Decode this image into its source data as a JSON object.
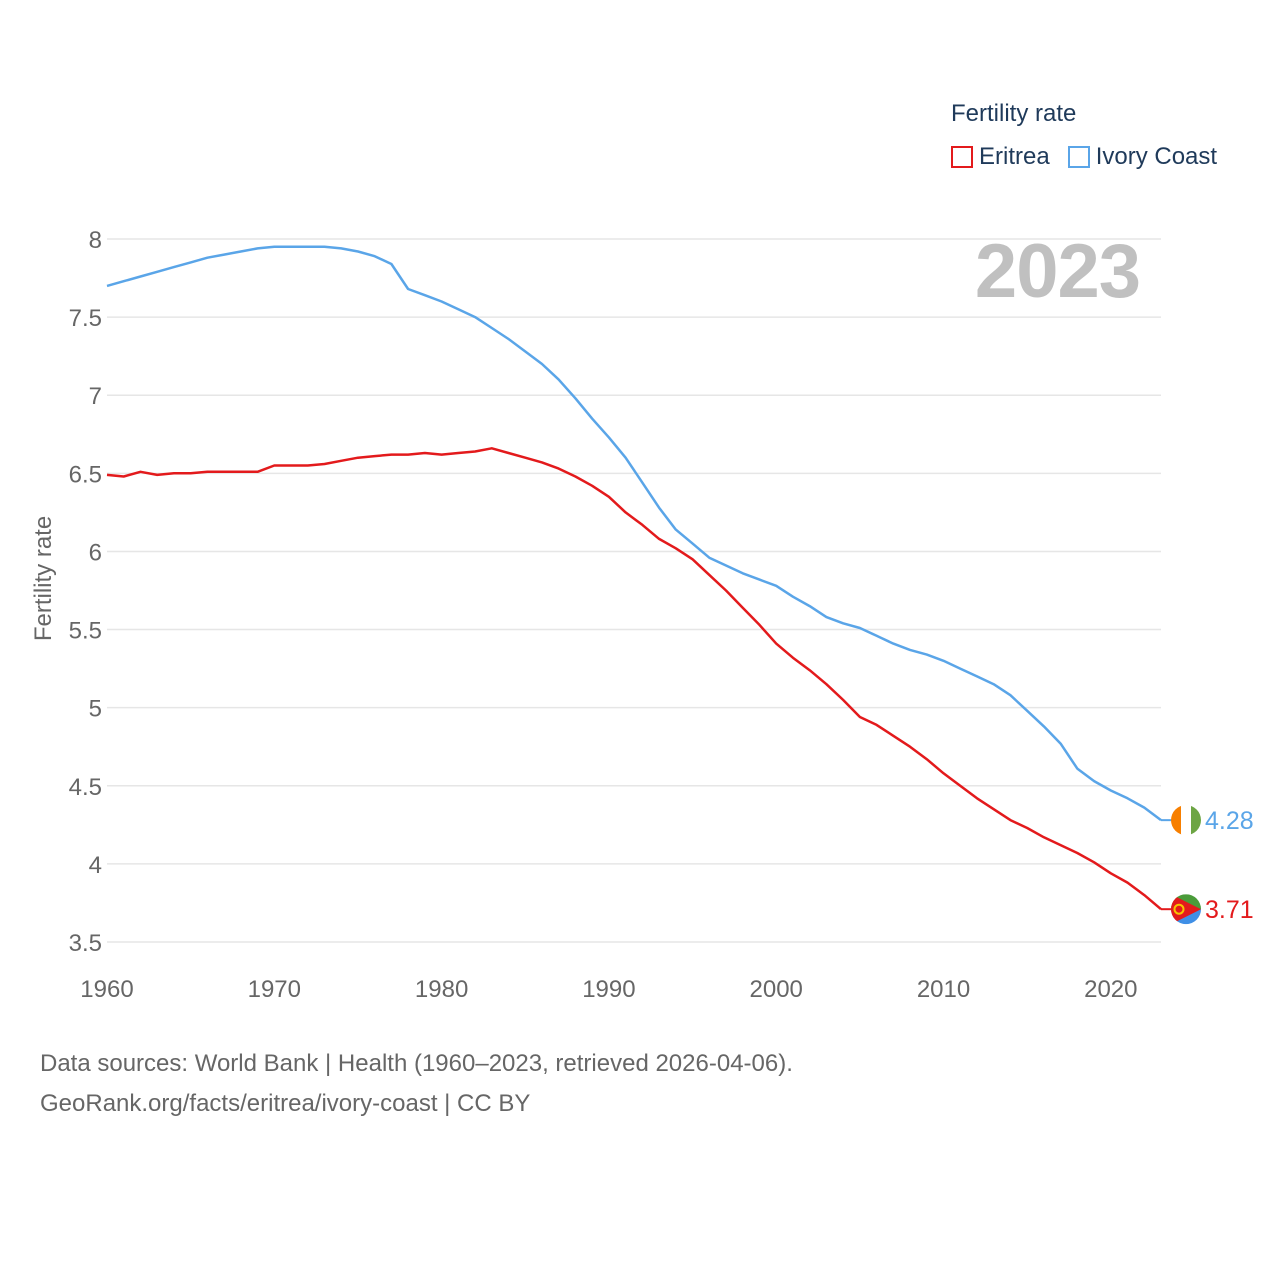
{
  "legend": {
    "title": "Fertility rate",
    "items": [
      {
        "label": "Eritrea",
        "color": "#e31a1c"
      },
      {
        "label": "Ivory Coast",
        "color": "#5aa5e8"
      }
    ]
  },
  "year_label": "2023",
  "source": {
    "line1": "Data sources: World Bank | Health (1960–2023, retrieved 2026-04-06).",
    "line2": "GeoRank.org/facts/eritrea/ivory-coast | CC BY"
  },
  "chart_data": {
    "type": "line",
    "title": "Fertility rate",
    "xlabel": "",
    "ylabel": "Fertility rate",
    "xlim": [
      1960,
      2023
    ],
    "ylim": [
      3.5,
      8
    ],
    "xticks": [
      1960,
      1970,
      1980,
      1990,
      2000,
      2010,
      2020
    ],
    "yticks": [
      3.5,
      4,
      4.5,
      5,
      5.5,
      6,
      6.5,
      7,
      7.5,
      8
    ],
    "grid": true,
    "x": [
      1960,
      1961,
      1962,
      1963,
      1964,
      1965,
      1966,
      1967,
      1968,
      1969,
      1970,
      1971,
      1972,
      1973,
      1974,
      1975,
      1976,
      1977,
      1978,
      1979,
      1980,
      1981,
      1982,
      1983,
      1984,
      1985,
      1986,
      1987,
      1988,
      1989,
      1990,
      1991,
      1992,
      1993,
      1994,
      1995,
      1996,
      1997,
      1998,
      1999,
      2000,
      2001,
      2002,
      2003,
      2004,
      2005,
      2006,
      2007,
      2008,
      2009,
      2010,
      2011,
      2012,
      2013,
      2014,
      2015,
      2016,
      2017,
      2018,
      2019,
      2020,
      2021,
      2022,
      2023
    ],
    "series": [
      {
        "name": "Eritrea",
        "color": "#e31a1c",
        "end_label": "3.71",
        "values": [
          6.49,
          6.48,
          6.51,
          6.49,
          6.5,
          6.5,
          6.51,
          6.51,
          6.51,
          6.51,
          6.55,
          6.55,
          6.55,
          6.56,
          6.58,
          6.6,
          6.61,
          6.62,
          6.62,
          6.63,
          6.62,
          6.63,
          6.64,
          6.66,
          6.63,
          6.6,
          6.57,
          6.53,
          6.48,
          6.42,
          6.35,
          6.25,
          6.17,
          6.08,
          6.02,
          5.95,
          5.85,
          5.75,
          5.64,
          5.53,
          5.41,
          5.32,
          5.24,
          5.15,
          5.05,
          4.94,
          4.89,
          4.82,
          4.75,
          4.67,
          4.58,
          4.5,
          4.42,
          4.35,
          4.28,
          4.23,
          4.17,
          4.12,
          4.07,
          4.01,
          3.94,
          3.88,
          3.8,
          3.71
        ]
      },
      {
        "name": "Ivory Coast",
        "color": "#5aa5e8",
        "end_label": "4.28",
        "values": [
          7.7,
          7.73,
          7.76,
          7.79,
          7.82,
          7.85,
          7.88,
          7.9,
          7.92,
          7.94,
          7.95,
          7.95,
          7.95,
          7.95,
          7.94,
          7.92,
          7.89,
          7.84,
          7.68,
          7.64,
          7.6,
          7.55,
          7.5,
          7.43,
          7.36,
          7.28,
          7.2,
          7.1,
          6.98,
          6.85,
          6.73,
          6.6,
          6.44,
          6.28,
          6.14,
          6.05,
          5.96,
          5.91,
          5.86,
          5.82,
          5.78,
          5.71,
          5.65,
          5.58,
          5.54,
          5.51,
          5.46,
          5.41,
          5.37,
          5.34,
          5.3,
          5.25,
          5.2,
          5.15,
          5.08,
          4.98,
          4.88,
          4.77,
          4.61,
          4.53,
          4.47,
          4.42,
          4.36,
          4.28
        ]
      }
    ]
  }
}
